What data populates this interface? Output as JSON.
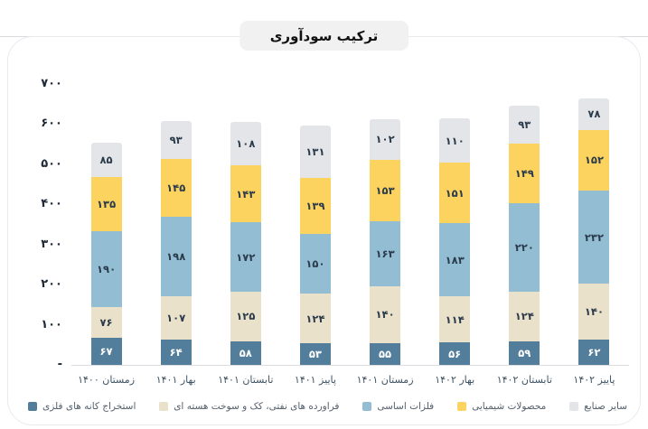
{
  "title": "ترکیب سودآوری",
  "y_axis": {
    "tick_labels": [
      "۷۰۰",
      "۶۰۰",
      "۵۰۰",
      "۴۰۰",
      "۳۰۰",
      "۲۰۰",
      "۱۰۰",
      "-"
    ]
  },
  "chart_data": {
    "type": "bar",
    "stacked": true,
    "title": "ترکیب سودآوری",
    "categories": [
      "زمستان ۱۴۰۰",
      "بهار ۱۴۰۱",
      "تابستان ۱۴۰۱",
      "پاییز ۱۴۰۱",
      "زمستان ۱۴۰۱",
      "بهار ۱۴۰۲",
      "تابستان ۱۴۰۲",
      "پاییز ۱۴۰۲"
    ],
    "series": [
      {
        "name": "استخراج کانه های فلزی",
        "color": "#527e9c",
        "value_text_color": "#ffffff",
        "values": [
          67,
          64,
          58,
          53,
          55,
          56,
          59,
          62
        ],
        "labels": [
          "۶۷",
          "۶۴",
          "۵۸",
          "۵۳",
          "۵۵",
          "۵۶",
          "۵۹",
          "۶۲"
        ]
      },
      {
        "name": "فراورده های نفتی، کک و سوخت هسته ای",
        "color": "#e9e1ca",
        "value_text_color": "#2b3b4b",
        "values": [
          76,
          107,
          125,
          124,
          140,
          114,
          124,
          140
        ],
        "labels": [
          "۷۶",
          "۱۰۷",
          "۱۲۵",
          "۱۲۴",
          "۱۴۰",
          "۱۱۴",
          "۱۲۴",
          "۱۴۰"
        ]
      },
      {
        "name": "فلزات اساسی",
        "color": "#92bdd3",
        "value_text_color": "#2b3b4b",
        "values": [
          190,
          198,
          172,
          150,
          163,
          183,
          220,
          232
        ],
        "labels": [
          "۱۹۰",
          "۱۹۸",
          "۱۷۲",
          "۱۵۰",
          "۱۶۳",
          "۱۸۳",
          "۲۲۰",
          "۲۳۲"
        ]
      },
      {
        "name": "محصولات شیمیایی",
        "color": "#fcd35e",
        "value_text_color": "#2b3b4b",
        "values": [
          135,
          145,
          143,
          139,
          153,
          151,
          149,
          152
        ],
        "labels": [
          "۱۳۵",
          "۱۴۵",
          "۱۴۳",
          "۱۳۹",
          "۱۵۳",
          "۱۵۱",
          "۱۴۹",
          "۱۵۲"
        ]
      },
      {
        "name": "سایر صنایع",
        "color": "#e3e5e8",
        "value_text_color": "#2b3b4b",
        "values": [
          85,
          93,
          108,
          131,
          102,
          110,
          93,
          78
        ],
        "labels": [
          "۸۵",
          "۹۳",
          "۱۰۸",
          "۱۳۱",
          "۱۰۲",
          "۱۱۰",
          "۹۳",
          "۷۸"
        ]
      }
    ],
    "ylim": [
      0,
      700
    ],
    "grid": false,
    "legend_position": "bottom"
  }
}
